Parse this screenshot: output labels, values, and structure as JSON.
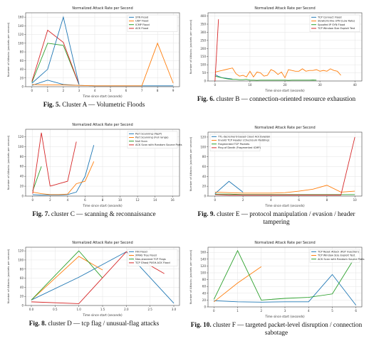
{
  "chart_data": [
    {
      "type": "line",
      "title": "Normalized Attack Rate per Second",
      "xlabel": "Time since start (seconds)",
      "ylabel": "Number of Attacks (packets per second)",
      "x": [
        0,
        1,
        2,
        3,
        4,
        5,
        6,
        7,
        8,
        9
      ],
      "xticks": [
        0,
        1,
        2,
        3,
        4,
        5,
        6,
        7,
        8,
        9
      ],
      "yticks": [
        0,
        20,
        40,
        60,
        80,
        100,
        120,
        140,
        160
      ],
      "ylim": [
        0,
        170
      ],
      "xlim": [
        -0.4,
        9.4
      ],
      "legend_position": "top-right",
      "series": [
        {
          "name": "SYN Flood",
          "color": "#1f77b4",
          "values": [
            3,
            15,
            5,
            3,
            2,
            2,
            2,
            2,
            2,
            2
          ]
        },
        {
          "name": "UDP Flood",
          "color": "#ff7f0e",
          "values": [
            5,
            4,
            4,
            3,
            2,
            2,
            2,
            2,
            100,
            8
          ]
        },
        {
          "name": "ICMP Flood",
          "color": "#2ca02c",
          "values": [
            10,
            100,
            95,
            5,
            null,
            null,
            null,
            null,
            null,
            null
          ]
        },
        {
          "name": "ACK Flood",
          "color": "#d62728",
          "values": [
            12,
            130,
            102,
            5,
            null,
            null,
            null,
            null,
            null,
            null
          ]
        },
        {
          "name": "",
          "color": "#1f77b4",
          "values": [
            8,
            40,
            160,
            5,
            null,
            null,
            null,
            null,
            null,
            null
          ]
        }
      ],
      "caption_label": "Fig. 5.",
      "caption_text": "Cluster A — Volumetric Floods"
    },
    {
      "type": "line",
      "title": "Normalized Attack Rate per Second",
      "xlabel": "Time since start (seconds)",
      "ylabel": "Number of Attacks (packets per second)",
      "x": [
        0,
        1,
        2,
        3,
        4,
        5,
        6,
        7,
        8,
        9,
        10,
        11,
        12,
        13,
        14,
        15,
        16,
        17,
        18,
        19,
        20,
        21,
        22,
        23,
        24,
        25,
        26,
        27,
        28,
        29,
        30,
        31,
        32,
        33,
        34,
        35,
        36,
        37,
        38,
        39,
        40
      ],
      "xticks": [
        0,
        10,
        20,
        30,
        40
      ],
      "yticks": [
        0,
        50,
        100,
        150,
        200,
        250,
        300,
        350,
        400
      ],
      "ylim": [
        0,
        420
      ],
      "xlim": [
        -2,
        42
      ],
      "legend_position": "top-right",
      "series": [
        {
          "name": "TCP Connect Flood",
          "color": "#1f77b4",
          "values": [
            40,
            28,
            20,
            18,
            15,
            12,
            null,
            null,
            null,
            null,
            null,
            null,
            null,
            null,
            null,
            null,
            null,
            null,
            null,
            null,
            null,
            null,
            null,
            null,
            null,
            null,
            null,
            null,
            null,
            null,
            null,
            null,
            null,
            null,
            null,
            null,
            null,
            null,
            null,
            null,
            null
          ]
        },
        {
          "name": "Slowloris-like SYN (Low Rate)",
          "color": "#ff7f0e",
          "values": [
            55,
            60,
            65,
            70,
            75,
            80,
            45,
            30,
            35,
            25,
            60,
            25,
            55,
            50,
            30,
            35,
            70,
            60,
            40,
            55,
            20,
            70,
            65,
            60,
            60,
            75,
            60,
            65,
            65,
            70,
            60,
            65,
            60,
            75,
            65,
            60,
            35,
            null,
            null,
            null,
            null
          ]
        },
        {
          "name": "Spoofed IP SYN Flood",
          "color": "#2ca02c",
          "values": [
            30,
            25,
            20,
            15,
            12,
            10,
            10,
            8,
            8,
            10,
            5,
            5,
            4,
            5,
            5,
            5,
            5,
            5,
            5,
            5,
            5,
            4,
            5,
            5,
            5,
            5,
            5,
            5,
            6,
            5,
            null,
            null,
            null,
            null,
            null,
            null,
            null,
            null,
            null,
            null,
            null
          ]
        },
        {
          "name": "TCP Window Size Exploit Test",
          "color": "#d62728",
          "values": [
            0,
            380,
            null,
            null,
            null,
            null,
            null,
            null,
            null,
            null,
            null,
            null,
            null,
            null,
            null,
            null,
            null,
            null,
            null,
            null,
            null,
            null,
            null,
            null,
            null,
            null,
            null,
            null,
            null,
            null,
            null,
            null,
            null,
            null,
            null,
            null,
            null,
            null,
            null,
            null,
            null
          ]
        }
      ],
      "caption_label": "Fig. 6.",
      "caption_text": "cluster B — connection-oriented resource exhaustion"
    },
    {
      "type": "line",
      "title": "Normalized Attack Rate per Second",
      "xlabel": "Time since start (seconds)",
      "ylabel": "Number of Attacks (packets per second)",
      "x": [
        0,
        1,
        2,
        3,
        4,
        5,
        6,
        7,
        8,
        9,
        10,
        11,
        12,
        13,
        14,
        15,
        16
      ],
      "xticks": [
        0,
        2,
        4,
        6,
        8,
        10,
        12,
        14,
        16
      ],
      "yticks": [
        0,
        20,
        40,
        60,
        80,
        100,
        120
      ],
      "ylim": [
        0,
        135
      ],
      "xlim": [
        -0.8,
        16.8
      ],
      "legend_position": "top-right",
      "series": [
        {
          "name": "Port Scanning (TopP)",
          "color": "#1f77b4",
          "values": [
            3,
            2,
            2,
            2,
            3,
            8,
            40,
            103,
            null,
            null,
            null,
            null,
            null,
            null,
            null,
            null,
            null
          ]
        },
        {
          "name": "Port Scanning (Full range)",
          "color": "#ff7f0e",
          "values": [
            8,
            5,
            3,
            3,
            4,
            25,
            30,
            70,
            null,
            null,
            null,
            null,
            null,
            null,
            null,
            null,
            null
          ]
        },
        {
          "name": "Null Scan",
          "color": "#2ca02c",
          "values": [
            10,
            60,
            null,
            null,
            null,
            null,
            null,
            null,
            null,
            null,
            null,
            null,
            null,
            null,
            null,
            null,
            null
          ]
        },
        {
          "name": "ACK Scan with Random Source Ports",
          "color": "#d62728",
          "values": [
            5,
            128,
            20,
            null,
            null,
            null,
            null,
            null,
            null,
            null,
            null,
            null,
            null,
            null,
            null,
            null,
            null
          ]
        },
        {
          "name": "",
          "color": "#d62728",
          "values": [
            null,
            null,
            20,
            25,
            30,
            110,
            null,
            null,
            null,
            null,
            null,
            null,
            null,
            null,
            null,
            null,
            null
          ]
        }
      ],
      "caption_label": "Fig. 7.",
      "caption_text": "cluster C — scanning & reconnaissance"
    },
    {
      "type": "line",
      "title": "Normalized Attack Rate per Second",
      "xlabel": "Time since start (seconds)",
      "ylabel": "Number of Attacks (packets per second)",
      "x": [
        0,
        1,
        2,
        3,
        4,
        5,
        6,
        7,
        8,
        9,
        10
      ],
      "xticks": [
        0,
        2,
        4,
        6,
        8,
        10
      ],
      "yticks": [
        0,
        20,
        40,
        60,
        80,
        100,
        120
      ],
      "ylim": [
        0,
        130
      ],
      "xlim": [
        -0.5,
        10.5
      ],
      "legend_position": "top-left",
      "series": [
        {
          "name": "TTL-decrement-based Cloud Ack Evasion",
          "color": "#1f77b4",
          "values": [
            5,
            30,
            8,
            null,
            null,
            null,
            null,
            null,
            null,
            null,
            null
          ]
        },
        {
          "name": "Invalid TCP Header (Checksum Padding)",
          "color": "#ff7f0e",
          "values": [
            8,
            7,
            6,
            6,
            6,
            7,
            10,
            14,
            22,
            8,
            10
          ]
        },
        {
          "name": "Fragmented TCP Packets",
          "color": "#2ca02c",
          "values": [
            4,
            4,
            3,
            3,
            3,
            3,
            3,
            3,
            3,
            3,
            3
          ]
        },
        {
          "name": "Ping of Death (Fragmented ICMP)",
          "color": "#d62728",
          "values": [
            3,
            2,
            2,
            2,
            2,
            2,
            2,
            2,
            2,
            2,
            120
          ]
        }
      ],
      "caption_label": "Fig. 9.",
      "caption_text": "cluster E — protocol manipulation / evasion / header tampering"
    },
    {
      "type": "line",
      "title": "Normalized Attack Rate per Second",
      "xlabel": "Time since start (seconds)",
      "ylabel": "Number of Attacks (packets per second)",
      "x": [
        0.0,
        0.5,
        1.0,
        1.5,
        2.0,
        2.5,
        3.0
      ],
      "xticks": [
        0.0,
        0.5,
        1.0,
        1.5,
        2.0,
        2.5,
        3.0
      ],
      "xtick_labels": [
        "0.0",
        "0.5",
        "1.0",
        "1.5",
        "2.0",
        "2.5",
        "3.0"
      ],
      "yticks": [
        0,
        20,
        40,
        60,
        80,
        100,
        120
      ],
      "ylim": [
        0,
        128
      ],
      "xlim": [
        -0.12,
        3.12
      ],
      "legend_position": "top-right",
      "series": [
        {
          "name": "FIN Flood",
          "color": "#1f77b4",
          "values": [
            12,
            null,
            null,
            null,
            null,
            null,
            null
          ]
        },
        {
          "name": "XMAS Tree Flood",
          "color": "#ff7f0e",
          "values": [
            null,
            null,
            null,
            null,
            null,
            null,
            null
          ]
        },
        {
          "name": "Non-standard TCP Flags",
          "color": "#2ca02c",
          "values": [
            null,
            null,
            null,
            null,
            null,
            null,
            null
          ]
        },
        {
          "name": "TCP Ghost PUSH-ACK Flood",
          "color": "#d62728",
          "values": [
            null,
            null,
            null,
            null,
            null,
            null,
            null
          ]
        }
      ],
      "lines_xy": [
        {
          "color": "#1f77b4",
          "points": [
            [
              0.0,
              12
            ],
            [
              1.0,
              62
            ],
            [
              2.0,
              118
            ],
            [
              3.0,
              5
            ]
          ]
        },
        {
          "color": "#ff7f0e",
          "points": [
            [
              0.0,
              12
            ],
            [
              1.0,
              108
            ],
            [
              1.5,
              78
            ]
          ]
        },
        {
          "color": "#2ca02c",
          "points": [
            [
              0.0,
              12
            ],
            [
              1.0,
              120
            ],
            [
              1.5,
              60
            ]
          ]
        },
        {
          "color": "#d62728",
          "points": [
            [
              0.0,
              8
            ],
            [
              1.0,
              4
            ],
            [
              2.0,
              118
            ],
            [
              2.8,
              70
            ]
          ]
        }
      ],
      "caption_label": "Fig. 8.",
      "caption_text": "cluster D — tcp flag / unusual-flag attacks"
    },
    {
      "type": "line",
      "title": "Normalized Attack Rate per Second",
      "xlabel": "Time since start (seconds)",
      "ylabel": "Number of Attacks (packets per second)",
      "x": [
        0,
        1,
        2,
        3,
        4,
        5,
        6
      ],
      "xticks": [
        0,
        1,
        2,
        3,
        4,
        5,
        6
      ],
      "yticks": [
        0,
        20,
        40,
        60,
        80,
        100,
        120,
        140,
        160
      ],
      "ylim": [
        0,
        175
      ],
      "xlim": [
        -0.25,
        6.25
      ],
      "legend_position": "top-right",
      "series": [
        {
          "name": "TCP Reset Attack (RST Injection)",
          "color": "#1f77b4",
          "values": [
            18,
            15,
            14,
            15,
            15,
            95,
            5
          ]
        },
        {
          "name": "TCP Window Size Exploit Test",
          "color": "#ff7f0e",
          "values": [
            15,
            70,
            118,
            null,
            null,
            null,
            null
          ]
        },
        {
          "name": "ACK Scan with Random Source Ports",
          "color": "#2ca02c",
          "values": [
            22,
            165,
            20,
            25,
            28,
            38,
            150
          ]
        }
      ],
      "caption_label": "Fig. 10.",
      "caption_text": "cluster F — targeted packet-level disruption / connection sabotage"
    }
  ]
}
